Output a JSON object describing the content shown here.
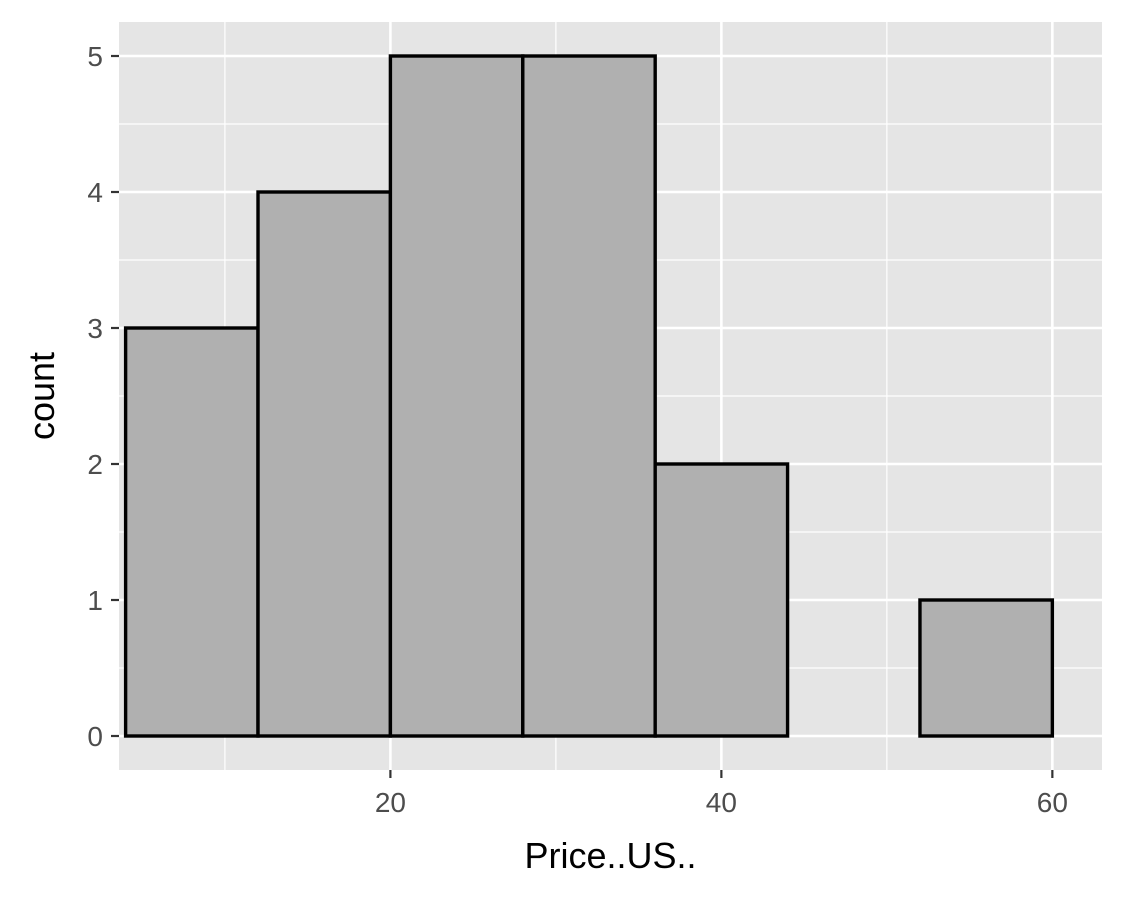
{
  "chart_data": {
    "type": "bar",
    "subtype": "histogram",
    "xlabel": "Price..US..",
    "ylabel": "count",
    "xlim": [
      3.6,
      63.0
    ],
    "ylim": [
      -0.25,
      5.25
    ],
    "x_ticks": [
      20,
      40,
      60
    ],
    "y_ticks": [
      0,
      1,
      2,
      3,
      4,
      5
    ],
    "bins": [
      {
        "x0": 4,
        "x1": 12,
        "count": 3
      },
      {
        "x0": 12,
        "x1": 20,
        "count": 4
      },
      {
        "x0": 20,
        "x1": 28,
        "count": 5
      },
      {
        "x0": 28,
        "x1": 36,
        "count": 5
      },
      {
        "x0": 36,
        "x1": 44,
        "count": 2
      },
      {
        "x0": 44,
        "x1": 52,
        "count": 0
      },
      {
        "x0": 52,
        "x1": 60,
        "count": 1
      }
    ],
    "grid": true,
    "legend": "none",
    "colors": {
      "panel_background": "#e5e5e5",
      "grid": "#ffffff",
      "bar_fill": "#b0b0b0",
      "bar_stroke": "#000000",
      "tick_text": "#4d4d4d",
      "axis_title": "#000000"
    }
  }
}
